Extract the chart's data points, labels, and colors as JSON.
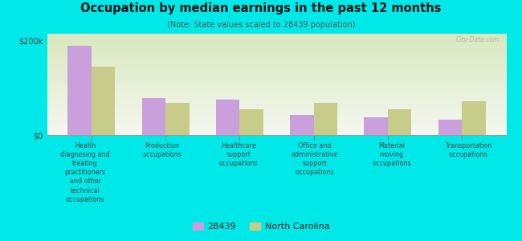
{
  "title": "Occupation by median earnings in the past 12 months",
  "subtitle": "(Note: State values scaled to 28439 population)",
  "categories": [
    "Health\ndiagnosing and\ntreating\npractitioners\nand other\ntechnical\noccupations",
    "Production\noccupations",
    "Healthcare\nsupport\noccupations",
    "Office and\nadministrative\nsupport\noccupations",
    "Material\nmoving\noccupations",
    "Transportation\noccupations"
  ],
  "values_28439": [
    190000,
    78000,
    75000,
    42000,
    38000,
    33000
  ],
  "values_nc": [
    145000,
    68000,
    55000,
    68000,
    55000,
    72000
  ],
  "color_28439": "#c9a0dc",
  "color_nc": "#c8cc8a",
  "background_color": "#00e8e8",
  "ylabel_ticks": [
    "$0",
    "$200k"
  ],
  "ytick_vals": [
    0,
    200000
  ],
  "ylim": [
    0,
    215000
  ],
  "legend_label_28439": "28439",
  "legend_label_nc": "North Carolina",
  "watermark": "City-Data.com",
  "bar_width": 0.32
}
